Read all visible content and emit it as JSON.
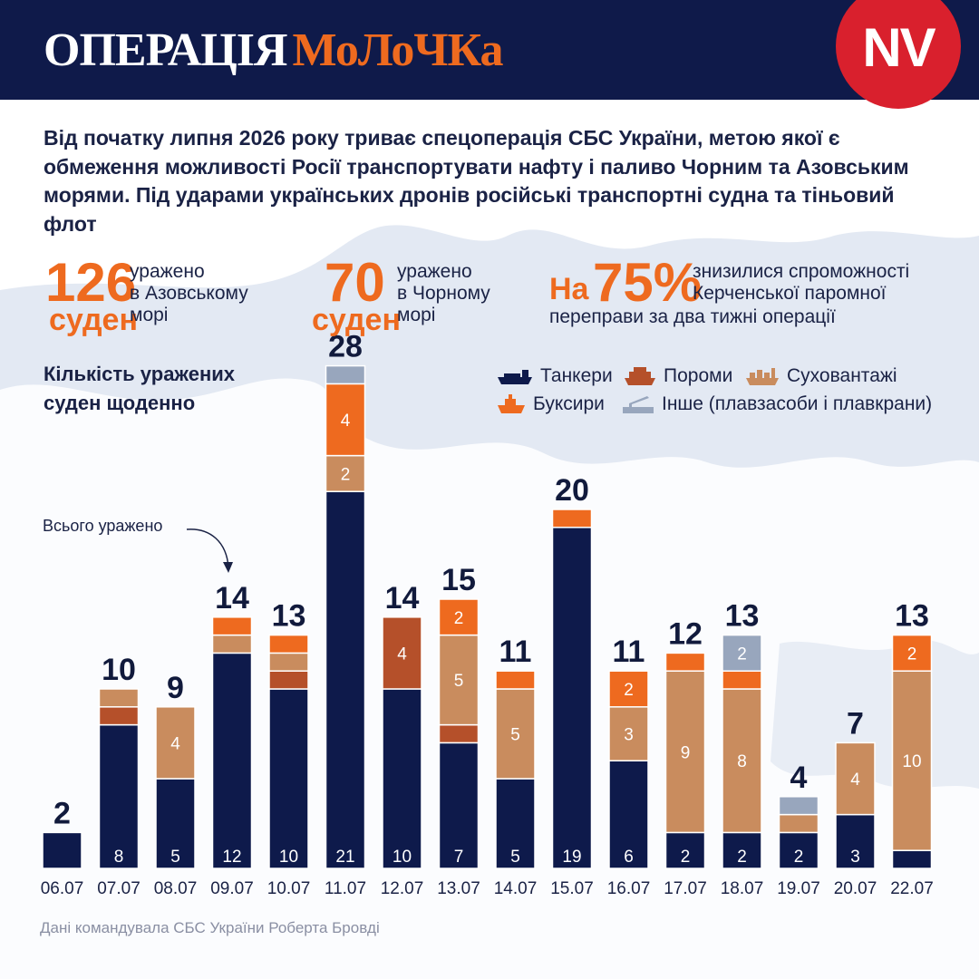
{
  "header": {
    "title_part1": "ОПЕРАЦІЯ",
    "title_part2": "МоЛоЧКа",
    "logo_text": "NV"
  },
  "intro_text": "Від початку липня 2026 року триває спецоперація СБС України, метою якої є обмеження можливості Росії транспортувати нафту і паливо Чорним та Азовським морями. Під ударами українських дронів російські транспортні судна та тіньовий флот",
  "stats": [
    {
      "number": "126",
      "unit": "суден",
      "line1": "уражено",
      "line2": "в Азовському",
      "line3": "морі"
    },
    {
      "number": "70",
      "unit": "суден",
      "line1": "уражено",
      "line2": "в Чорному",
      "line3": "морі"
    }
  ],
  "stat3": {
    "prefix": "На",
    "number": "75%",
    "line1": "знизилися спроможності",
    "line2": "Керченської паромної",
    "line3": "переправи за два тижні операції"
  },
  "annotation": "Всього уражено",
  "source": "Дані командувала СБС України Роберта Бровді",
  "colors": {
    "navy": "#0e1a4b",
    "ferry": "#b5502a",
    "cargo": "#c98c5e",
    "tug": "#ee6a1f",
    "other": "#98a6bd",
    "header_bg": "#0f1a4a",
    "accent": "#ee6a1f",
    "logo_red": "#d9202d"
  },
  "chart_data": {
    "type": "bar",
    "stacked": true,
    "title": "Кількість уражених суден щоденно",
    "categories": [
      "06.07",
      "07.07",
      "08.07",
      "09.07",
      "10.07",
      "11.07",
      "12.07",
      "13.07",
      "14.07",
      "15.07",
      "16.07",
      "17.07",
      "18.07",
      "19.07",
      "20.07",
      "22.07"
    ],
    "series": [
      {
        "name": "Танкери",
        "color": "#0e1a4b",
        "icon": "tanker-icon",
        "values": [
          2,
          8,
          5,
          12,
          10,
          21,
          10,
          7,
          5,
          19,
          6,
          2,
          2,
          2,
          3,
          1
        ],
        "labels": [
          "",
          "8",
          "5",
          "12",
          "10",
          "21",
          "10",
          "7",
          "5",
          "19",
          "6",
          "2",
          "2",
          "2",
          "3",
          ""
        ]
      },
      {
        "name": "Пороми",
        "color": "#b5502a",
        "icon": "ferry-icon",
        "values": [
          0,
          1,
          0,
          0,
          1,
          0,
          4,
          1,
          0,
          0,
          0,
          0,
          0,
          0,
          0,
          0
        ],
        "labels": [
          "",
          "",
          "",
          "",
          "",
          "",
          "4",
          "",
          "",
          "",
          "",
          "",
          "",
          "",
          "",
          ""
        ]
      },
      {
        "name": "Суховантажі",
        "color": "#c98c5e",
        "icon": "cargo-ship-icon",
        "values": [
          0,
          1,
          4,
          1,
          1,
          2,
          0,
          5,
          5,
          0,
          3,
          9,
          8,
          1,
          4,
          10
        ],
        "labels": [
          "",
          "",
          "4",
          "",
          "",
          "2",
          "",
          "5",
          "5",
          "",
          "3",
          "9",
          "8",
          "",
          "4",
          "10"
        ]
      },
      {
        "name": "Буксири",
        "color": "#ee6a1f",
        "icon": "tug-icon",
        "values": [
          0,
          0,
          0,
          1,
          1,
          4,
          0,
          2,
          1,
          1,
          2,
          1,
          1,
          0,
          0,
          2
        ],
        "labels": [
          "",
          "",
          "",
          "",
          "",
          "4",
          "",
          "2",
          "",
          "",
          "2",
          "",
          "",
          "",
          "",
          "2"
        ]
      },
      {
        "name": "Інше (плавзасоби і плавкрани)",
        "color": "#98a6bd",
        "icon": "crane-icon",
        "values": [
          0,
          0,
          0,
          0,
          0,
          1,
          0,
          0,
          0,
          0,
          0,
          0,
          2,
          1,
          0,
          0
        ],
        "labels": [
          "",
          "",
          "",
          "",
          "",
          "",
          "",
          "",
          "",
          "",
          "",
          "",
          "2",
          "",
          "",
          ""
        ]
      }
    ],
    "totals": [
      2,
      10,
      9,
      14,
      13,
      28,
      14,
      15,
      11,
      20,
      11,
      12,
      13,
      4,
      7,
      13
    ]
  }
}
